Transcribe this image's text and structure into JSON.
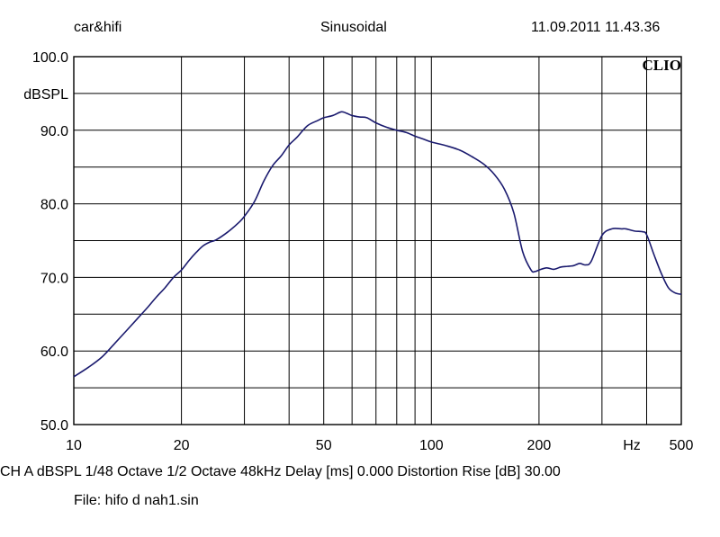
{
  "header": {
    "left": "car&hifi",
    "center": "Sinusoidal",
    "right": "11.09.2011 11.43.36"
  },
  "watermark": "CLIO",
  "footer": {
    "line1": "CH A   dBSPL    1/48 Octave    1/2 Octave   48kHz    Delay [ms] 0.000     Distortion Rise [dB] 30.00",
    "line2": "File: hifo d nah1.sin"
  },
  "chart_data": {
    "type": "line",
    "title": "Sinusoidal",
    "xlabel": "Hz",
    "ylabel": "dBSPL",
    "xscale": "log",
    "xlim": [
      10,
      500
    ],
    "ylim": [
      50,
      100
    ],
    "x_ticks": [
      {
        "value": 10,
        "label": "10"
      },
      {
        "value": 20,
        "label": "20"
      },
      {
        "value": 50,
        "label": "50"
      },
      {
        "value": 100,
        "label": "100"
      },
      {
        "value": 200,
        "label": "200"
      },
      {
        "value": 500,
        "label": "500"
      }
    ],
    "y_ticks": [
      {
        "value": 100,
        "label": "100.0"
      },
      {
        "value": 90,
        "label": "90.0"
      },
      {
        "value": 80,
        "label": "80.0"
      },
      {
        "value": 70,
        "label": "70.0"
      },
      {
        "value": 60,
        "label": "60.0"
      },
      {
        "value": 50,
        "label": "50.0"
      }
    ],
    "grid": true,
    "line_color": "#1a1a6e",
    "series": [
      {
        "x": [
          10,
          11,
          12,
          13,
          14,
          15,
          16,
          17,
          18,
          19,
          20,
          21,
          22,
          23,
          24,
          25,
          27,
          29,
          30,
          32,
          34,
          36,
          38,
          40,
          42,
          45,
          48,
          50,
          53,
          56,
          58,
          60,
          63,
          66,
          70,
          75,
          80,
          85,
          90,
          95,
          100,
          110,
          120,
          130,
          140,
          150,
          160,
          170,
          180,
          190,
          195,
          200,
          210,
          220,
          230,
          240,
          250,
          260,
          270,
          280,
          300,
          320,
          340,
          350,
          370,
          390,
          400,
          420,
          440,
          460,
          480,
          500
        ],
        "y": [
          56.5,
          57.8,
          59.2,
          61.0,
          62.7,
          64.3,
          65.8,
          67.3,
          68.6,
          70.0,
          71.0,
          72.3,
          73.4,
          74.3,
          74.8,
          75.1,
          76.2,
          77.5,
          78.3,
          80.3,
          83.1,
          85.2,
          86.5,
          88.0,
          89.0,
          90.6,
          91.3,
          91.7,
          92.0,
          92.5,
          92.3,
          92.0,
          91.8,
          91.7,
          91.0,
          90.4,
          90.0,
          89.7,
          89.2,
          88.8,
          88.4,
          87.9,
          87.3,
          86.4,
          85.4,
          84.0,
          82.0,
          78.8,
          73.5,
          71.0,
          70.8,
          71.0,
          71.3,
          71.1,
          71.4,
          71.5,
          71.6,
          71.9,
          71.7,
          72.2,
          75.7,
          76.6,
          76.6,
          76.6,
          76.3,
          76.2,
          75.8,
          73.0,
          70.5,
          68.6,
          67.9,
          67.7
        ]
      }
    ]
  }
}
